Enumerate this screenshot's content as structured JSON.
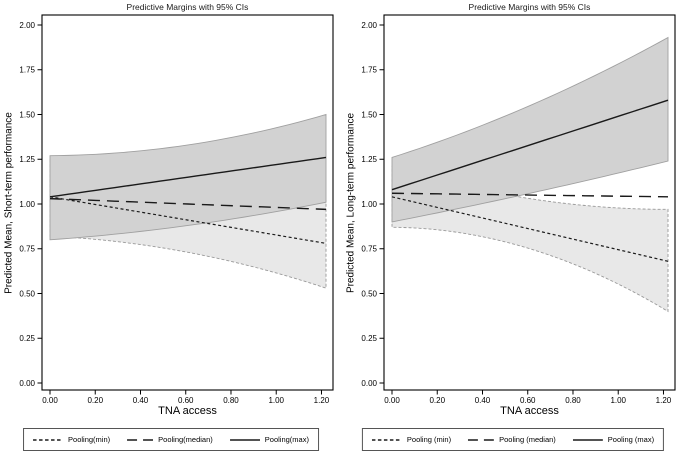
{
  "figure": {
    "background": "#ffffff",
    "colors": {
      "band_dark_fill": "#d2d2d2",
      "band_dark_edge": "#a0a0a0",
      "band_light_fill": "#e8e8e8",
      "band_light_edge": "#999999",
      "line": "#1a1a1a",
      "frame": "#000000",
      "tick": "#000000"
    }
  },
  "chart_data": [
    {
      "type": "line",
      "title": "Predictive Margins with 95% CIs",
      "xlabel": "TNA access",
      "ylabel": "Predicted Mean, Short-term performance",
      "xlim": [
        0,
        1.22
      ],
      "ylim": [
        0,
        2.0
      ],
      "grid": false,
      "legend_position": "bottom",
      "xticks": [
        "0.00",
        "0.20",
        "0.40",
        "0.60",
        "0.80",
        "1.00",
        "1.20"
      ],
      "yticks": [
        "0.00",
        "0.25",
        "0.50",
        "0.75",
        "1.00",
        "1.25",
        "1.50",
        "1.75",
        "2.00"
      ],
      "x": [
        0,
        0.61,
        1.22
      ],
      "series": [
        {
          "name": "Pooling(min)",
          "style": "dotted",
          "values": [
            1.04,
            0.91,
            0.78
          ],
          "ci_lower": [
            0.82,
            0.73,
            0.53
          ],
          "ci_upper": [
            1.26,
            1.05,
            1.02
          ],
          "band": "light"
        },
        {
          "name": "Pooling(median)",
          "style": "longdash",
          "values": [
            1.03,
            1.0,
            0.97
          ]
        },
        {
          "name": "Pooling(max)",
          "style": "solid",
          "values": [
            1.04,
            1.15,
            1.26
          ],
          "ci_lower": [
            0.8,
            0.88,
            1.01
          ],
          "ci_upper": [
            1.27,
            1.33,
            1.5
          ],
          "band": "dark"
        }
      ]
    },
    {
      "type": "line",
      "title": "Predictive Margins with 95% CIs",
      "xlabel": "TNA access",
      "ylabel": "Predicted Mean, Long-term performance",
      "xlim": [
        0,
        1.22
      ],
      "ylim": [
        0,
        2.0
      ],
      "grid": false,
      "legend_position": "bottom",
      "xticks": [
        "0.00",
        "0.20",
        "0.40",
        "0.60",
        "0.80",
        "1.00",
        "1.20"
      ],
      "yticks": [
        "0.00",
        "0.25",
        "0.50",
        "0.75",
        "1.00",
        "1.25",
        "1.50",
        "1.75",
        "2.00"
      ],
      "x": [
        0,
        0.61,
        1.22
      ],
      "series": [
        {
          "name": "Pooling (min)",
          "style": "dotted",
          "values": [
            1.04,
            0.86,
            0.68
          ],
          "ci_lower": [
            0.87,
            0.75,
            0.4
          ],
          "ci_upper": [
            1.21,
            1.03,
            0.97
          ],
          "band": "light"
        },
        {
          "name": "Pooling (median)",
          "style": "longdash",
          "values": [
            1.06,
            1.05,
            1.04
          ]
        },
        {
          "name": "Pooling (max)",
          "style": "solid",
          "values": [
            1.08,
            1.33,
            1.58
          ],
          "ci_lower": [
            0.9,
            1.06,
            1.24
          ],
          "ci_upper": [
            1.26,
            1.55,
            1.93
          ]
        }
      ]
    }
  ]
}
